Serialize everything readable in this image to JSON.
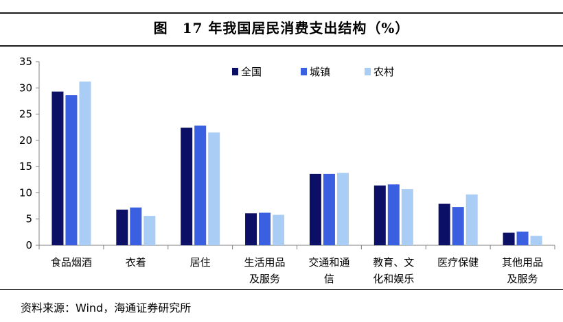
{
  "title": "图　17 年我国居民消费支出结构（%）",
  "source": "资料来源：Wind，海通证券研究所",
  "chart_data": {
    "type": "bar",
    "categories": [
      [
        "食品烟酒"
      ],
      [
        "衣着"
      ],
      [
        "居住"
      ],
      [
        "生活用品",
        "及服务"
      ],
      [
        "交通和通",
        "信"
      ],
      [
        "教育、文",
        "化和娱乐"
      ],
      [
        "医疗保健"
      ],
      [
        "其他用品",
        "及服务"
      ]
    ],
    "series": [
      {
        "name": "全国",
        "color": "#0b0f66",
        "values": [
          29.3,
          6.8,
          22.4,
          6.1,
          13.6,
          11.4,
          7.9,
          2.4
        ]
      },
      {
        "name": "城镇",
        "color": "#3a5fe0",
        "values": [
          28.6,
          7.2,
          22.8,
          6.2,
          13.6,
          11.6,
          7.3,
          2.6
        ]
      },
      {
        "name": "农村",
        "color": "#a9cdf5",
        "values": [
          31.2,
          5.6,
          21.5,
          5.8,
          13.8,
          10.7,
          9.7,
          1.8
        ]
      }
    ],
    "ylim": [
      0,
      35
    ],
    "yticks": [
      0,
      5,
      10,
      15,
      20,
      25,
      30,
      35
    ],
    "legend": "top-right",
    "grid": false
  }
}
